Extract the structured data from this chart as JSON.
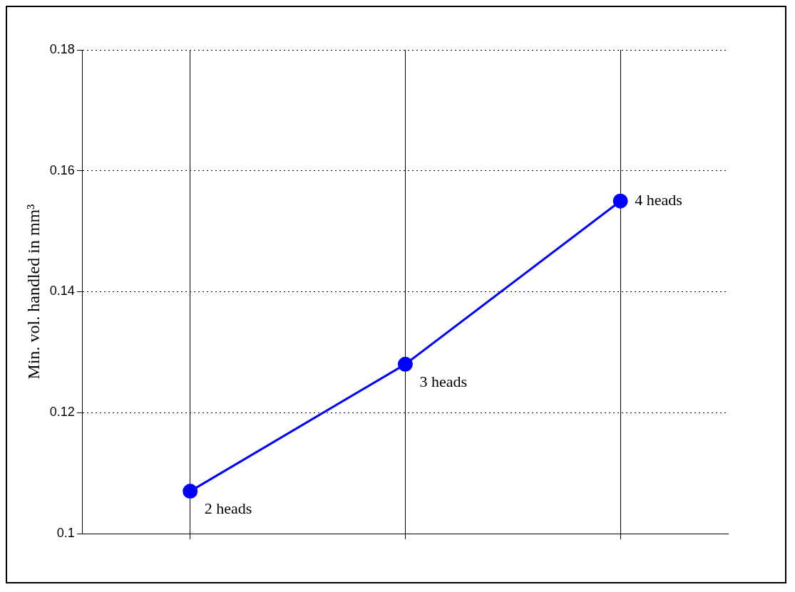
{
  "chart_data": {
    "type": "line",
    "ylabel": "Min. vol. handled in mm³",
    "categories": [
      null,
      null,
      null
    ],
    "series": [
      {
        "color": "#0000ff",
        "values": [
          0.107,
          0.128,
          0.155
        ]
      }
    ],
    "ylim": [
      0.1,
      0.18
    ],
    "yticks": [
      0.1,
      0.12,
      0.14,
      0.16,
      0.18
    ],
    "grid": true,
    "marker": "circle",
    "line_style": "solid",
    "tick_labels": "y",
    "annotations": [
      "2 heads",
      "3 heads",
      "4 heads"
    ]
  }
}
